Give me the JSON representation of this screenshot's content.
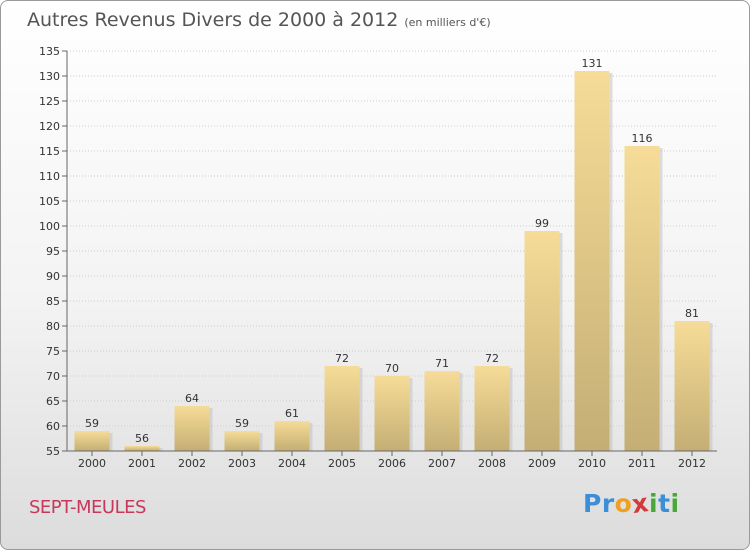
{
  "title": "Autres Revenus Divers de 2000 à 2012",
  "subtitle": "(en milliers d'€)",
  "place": "SEPT-MEULES",
  "logo": {
    "text": "Proxiti",
    "letters": [
      {
        "ch": "P",
        "color": "#3a8fd8"
      },
      {
        "ch": "r",
        "color": "#3a8fd8"
      },
      {
        "ch": "o",
        "color": "#f0a020"
      },
      {
        "ch": "x",
        "color": "#d43a3a"
      },
      {
        "ch": "i",
        "color": "#4aa83a"
      },
      {
        "ch": "t",
        "color": "#3a8fd8"
      },
      {
        "ch": "i",
        "color": "#4aa83a"
      }
    ]
  },
  "colors": {
    "bar_light": "#f6dc98",
    "bar_dark": "#c4ae74",
    "axis": "#666666",
    "grid": "#cccccc"
  },
  "chart_data": {
    "type": "bar",
    "categories": [
      "2000",
      "2001",
      "2002",
      "2003",
      "2004",
      "2005",
      "2006",
      "2007",
      "2008",
      "2009",
      "2010",
      "2011",
      "2012"
    ],
    "values": [
      59,
      56,
      64,
      59,
      61,
      72,
      70,
      71,
      72,
      99,
      131,
      116,
      81
    ],
    "ylim": [
      55,
      135
    ],
    "yticks": [
      55,
      60,
      65,
      70,
      75,
      80,
      85,
      90,
      95,
      100,
      105,
      110,
      115,
      120,
      125,
      130,
      135
    ],
    "grid": "horizontal dotted",
    "title": "Autres Revenus Divers de 2000 à 2012",
    "xlabel": "",
    "ylabel": ""
  }
}
